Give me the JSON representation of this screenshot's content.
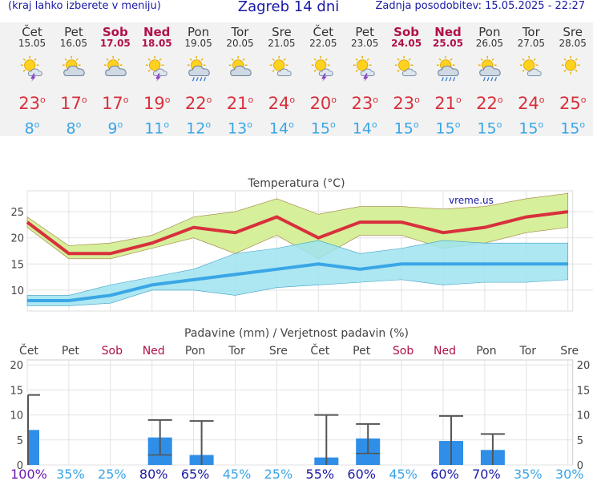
{
  "header": {
    "left": "(kraj lahko izberete v meniju)",
    "title": "Zagreb 14 dni",
    "right": "Zadnja posodobitev: 15.05.2025 - 22:27"
  },
  "days": [
    {
      "name": "Čet",
      "date": "15.05",
      "weekend": false,
      "icon": "sun-cloud-storm-icon",
      "tmax": "23",
      "tmin": "8"
    },
    {
      "name": "Pet",
      "date": "16.05",
      "weekend": false,
      "icon": "sun-cloud-icon",
      "tmax": "17",
      "tmin": "8"
    },
    {
      "name": "Sob",
      "date": "17.05",
      "weekend": true,
      "icon": "sun-cloud-icon",
      "tmax": "17",
      "tmin": "9"
    },
    {
      "name": "Ned",
      "date": "18.05",
      "weekend": true,
      "icon": "sun-cloud-storm-icon",
      "tmax": "19",
      "tmin": "11"
    },
    {
      "name": "Pon",
      "date": "19.05",
      "weekend": false,
      "icon": "sun-cloud-rain-icon",
      "tmax": "22",
      "tmin": "12"
    },
    {
      "name": "Tor",
      "date": "20.05",
      "weekend": false,
      "icon": "sun-cloud-icon",
      "tmax": "21",
      "tmin": "13"
    },
    {
      "name": "Sre",
      "date": "21.05",
      "weekend": false,
      "icon": "sun-small-cloud-icon",
      "tmax": "24",
      "tmin": "14"
    },
    {
      "name": "Čet",
      "date": "22.05",
      "weekend": false,
      "icon": "sun-cloud-storm-icon",
      "tmax": "20",
      "tmin": "15"
    },
    {
      "name": "Pet",
      "date": "23.05",
      "weekend": false,
      "icon": "sun-cloud-storm-icon",
      "tmax": "23",
      "tmin": "14"
    },
    {
      "name": "Sob",
      "date": "24.05",
      "weekend": true,
      "icon": "sun-small-cloud-icon",
      "tmax": "23",
      "tmin": "15"
    },
    {
      "name": "Ned",
      "date": "25.05",
      "weekend": true,
      "icon": "sun-cloud-rain-icon",
      "tmax": "21",
      "tmin": "15"
    },
    {
      "name": "Pon",
      "date": "26.05",
      "weekend": false,
      "icon": "sun-cloud-rain-icon",
      "tmax": "22",
      "tmin": "15"
    },
    {
      "name": "Tor",
      "date": "27.05",
      "weekend": false,
      "icon": "sun-small-cloud-icon",
      "tmax": "24",
      "tmin": "15"
    },
    {
      "name": "Sre",
      "date": "28.05",
      "weekend": false,
      "icon": "sun-icon",
      "tmax": "25",
      "tmin": "15"
    }
  ],
  "colors": {
    "weekend": "#b0104a",
    "tmax": "#d8303c",
    "tmin": "#3aa6e6",
    "tmax_band": "#d6ef9a",
    "tmin_band": "#9ee3f0",
    "overlap": "#7fd080",
    "rain_bar": "#2f8fe8",
    "axis_text": "#444444"
  },
  "chart_data": [
    {
      "type": "line",
      "title": "Temperatura (°C)",
      "watermark": "vreme.us",
      "ylim": [
        6,
        29
      ],
      "yticks": [
        10,
        15,
        20,
        25
      ],
      "grid": true,
      "series": [
        {
          "values": [
            23,
            17,
            17,
            19,
            22,
            21,
            24,
            20,
            23,
            23,
            21,
            22,
            24,
            25
          ]
        },
        {
          "values": [
            8,
            8,
            9,
            11,
            12,
            13,
            14,
            15,
            14,
            15,
            15,
            15,
            15,
            15
          ]
        }
      ],
      "tmax_band_upper": [
        24,
        18.5,
        19,
        20.5,
        24,
        25,
        27.5,
        24.5,
        26,
        26,
        25.5,
        26,
        27.5,
        28.5
      ],
      "tmax_band_lower": [
        22,
        16,
        16,
        18,
        20,
        17,
        20.5,
        16,
        20.5,
        20.5,
        18,
        19,
        21,
        22
      ],
      "tmin_band_upper": [
        9,
        9,
        11,
        12.5,
        14,
        17,
        18,
        19.5,
        17,
        18,
        19.5,
        19,
        19,
        19
      ],
      "tmin_band_lower": [
        7,
        7,
        7.5,
        10,
        10,
        9,
        10.5,
        11,
        11.5,
        12,
        11,
        11.5,
        11.5,
        12
      ]
    },
    {
      "type": "bar",
      "title": "Padavine (mm) / Verjetnost padavin (%)",
      "categories": [
        "Čet",
        "Pet",
        "Sob",
        "Ned",
        "Pon",
        "Tor",
        "Sre",
        "Čet",
        "Pet",
        "Sob",
        "Ned",
        "Pon",
        "Tor",
        "Sre"
      ],
      "ylim": [
        0,
        21
      ],
      "yticks": [
        0,
        5,
        10,
        15,
        20
      ],
      "values": [
        7,
        0,
        0,
        5.5,
        2,
        0,
        0,
        1.5,
        5.3,
        0,
        4.8,
        3,
        0,
        0
      ],
      "error_high": [
        14,
        0,
        0,
        9,
        8.8,
        0,
        0,
        10,
        8.2,
        0,
        9.8,
        6.2,
        0,
        0
      ],
      "error_low": [
        0,
        0,
        0,
        2,
        0,
        0,
        0,
        0,
        2.3,
        0,
        0,
        0,
        0,
        0
      ],
      "probability": [
        "100%",
        "35%",
        "25%",
        "80%",
        "65%",
        "45%",
        "25%",
        "55%",
        "60%",
        "45%",
        "60%",
        "70%",
        "35%",
        "30%"
      ],
      "probability_colors": [
        "#6a1ab0",
        "#3aa6e6",
        "#3aa6e6",
        "#1a1aa6",
        "#1a1aa6",
        "#3aa6e6",
        "#3aa6e6",
        "#1a1aa6",
        "#1a1aa6",
        "#3aa6e6",
        "#1a1aa6",
        "#1a1aa6",
        "#3aa6e6",
        "#3aa6e6"
      ]
    }
  ]
}
